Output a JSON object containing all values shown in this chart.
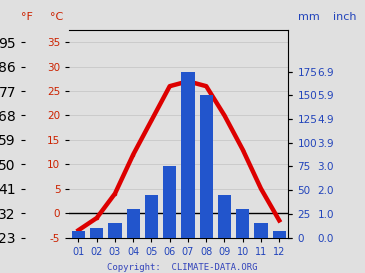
{
  "months": [
    1,
    2,
    3,
    4,
    5,
    6,
    7,
    8,
    9,
    10,
    11,
    12
  ],
  "month_labels": [
    "01",
    "02",
    "03",
    "04",
    "05",
    "06",
    "07",
    "08",
    "09",
    "10",
    "11",
    "12"
  ],
  "precipitation_mm": [
    7,
    10,
    15,
    30,
    45,
    75,
    175,
    150,
    45,
    30,
    15,
    7
  ],
  "temp_c": [
    -3.5,
    -1,
    4,
    12,
    19,
    26,
    27,
    26,
    20,
    13,
    5,
    -1.5
  ],
  "bar_color": "#2255cc",
  "line_color": "#dd0000",
  "line_width": 3.2,
  "marker": "o",
  "marker_size": 2.5,
  "ylabel_left_f": "°F",
  "ylabel_left_c": "°C",
  "ylabel_right_mm": "mm",
  "ylabel_right_inch": "inch",
  "ylim_c": [
    -5,
    37.5
  ],
  "ylim_mm": [
    0,
    218.75
  ],
  "yticks_c": [
    -5,
    0,
    5,
    10,
    15,
    20,
    25,
    30,
    35
  ],
  "yticks_f": [
    23,
    32,
    41,
    50,
    59,
    68,
    77,
    86,
    95
  ],
  "yticks_mm": [
    0,
    25,
    50,
    75,
    100,
    125,
    150,
    175
  ],
  "yticks_inch": [
    "0.0",
    "1.0",
    "2.0",
    "3.0",
    "3.9",
    "4.9",
    "5.9",
    "6.9"
  ],
  "copyright": "Copyright:  CLIMATE-DATA.ORG",
  "copyright_color": "#3344bb",
  "bg_color": "#e0e0e0",
  "left_label_color": "#cc2200",
  "right_label_color": "#2244bb",
  "grid_color": "#c8c8c8",
  "zero_line_color": "#000000",
  "spine_color": "#000000"
}
